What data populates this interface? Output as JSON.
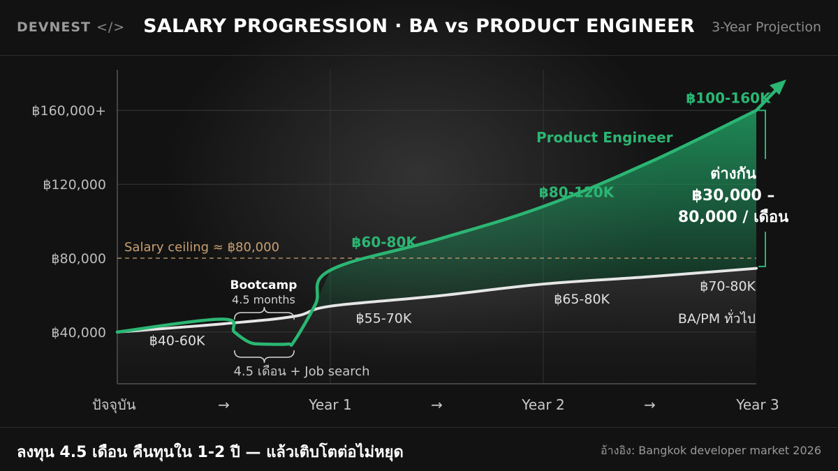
{
  "header": {
    "brand": "DEVNEST",
    "brand_code": "</>",
    "title": "SALARY PROGRESSION · BA vs PRODUCT ENGINEER",
    "subtitle": "3-Year Projection"
  },
  "footer": {
    "headline": "ลงทุน 4.5 เดือน คืนทุนใน 1-2 ปี — แล้วเติบโตต่อไม่หยุด",
    "reference": "อ้างอิง: Bangkok developer market 2026"
  },
  "colors": {
    "engineer": "#2bb673",
    "ba": "#e6e6e6",
    "ceiling": "#c9a072",
    "background": "#121212"
  },
  "chart_data": {
    "type": "line",
    "title": "SALARY PROGRESSION · BA vs PRODUCT ENGINEER",
    "x_ticks": [
      {
        "label": "ปัจจุบัน",
        "x": 0
      },
      {
        "label": "→",
        "x": 0.5
      },
      {
        "label": "Year 1",
        "x": 1
      },
      {
        "label": "→",
        "x": 1.5
      },
      {
        "label": "Year 2",
        "x": 2
      },
      {
        "label": "→",
        "x": 2.5
      },
      {
        "label": "Year 3",
        "x": 3
      }
    ],
    "y_ticks": [
      {
        "label": "฿40,000",
        "value": 40000
      },
      {
        "label": "฿80,000",
        "value": 80000
      },
      {
        "label": "฿120,000",
        "value": 120000
      },
      {
        "label": "฿160,000+",
        "value": 160000
      }
    ],
    "xlim": [
      0,
      3
    ],
    "ylim": [
      12000,
      182000
    ],
    "grid": true,
    "series": [
      {
        "name": "Product Engineer",
        "points": [
          [
            0,
            40000
          ],
          [
            0.49,
            47000
          ],
          [
            0.55,
            40000
          ],
          [
            0.62,
            34500
          ],
          [
            0.68,
            33500
          ],
          [
            0.8,
            33500
          ],
          [
            0.83,
            35000
          ],
          [
            0.93,
            55000
          ],
          [
            1.0,
            73500
          ],
          [
            1.5,
            90000
          ],
          [
            2.0,
            108000
          ],
          [
            2.5,
            132000
          ],
          [
            3.0,
            160000
          ]
        ]
      },
      {
        "name": "BA/PM ทั่วไป",
        "points": [
          [
            0,
            40000
          ],
          [
            0.5,
            44500
          ],
          [
            0.83,
            48500
          ],
          [
            1.0,
            54000
          ],
          [
            1.5,
            59500
          ],
          [
            2.0,
            66000
          ],
          [
            2.5,
            70000
          ],
          [
            3.0,
            74500
          ]
        ]
      }
    ],
    "ceiling": {
      "label": "Salary ceiling ≈ ฿80,000",
      "value": 80000
    },
    "engineer_labels": [
      {
        "text": "฿60-80K",
        "x": 1.1,
        "y": 86000
      },
      {
        "text": "฿80-120K",
        "x": 1.98,
        "y": 113000
      },
      {
        "text": "฿100-160K",
        "x": 2.67,
        "y": 164000
      }
    ],
    "engineer_series_label": "Product Engineer",
    "ba_labels": [
      {
        "text": "฿40-60K",
        "x": 0.15,
        "y": 33000
      },
      {
        "text": "฿55-70K",
        "x": 1.12,
        "y": 45000
      },
      {
        "text": "฿65-80K",
        "x": 2.05,
        "y": 55500
      },
      {
        "text": "฿70-80K",
        "x": 2.91,
        "y": 62500
      }
    ],
    "ba_series_label": "BA/PM ทั่วไป",
    "bootcamp": {
      "title": "Bootcamp",
      "duration": "4.5 months",
      "start_x": 0.55,
      "end_x": 0.83,
      "note": "4.5 เดือน + Job search"
    },
    "difference": {
      "line1": "ต่างกัน",
      "line2": "฿30,000 –",
      "line3": "80,000 / เดือน"
    }
  }
}
